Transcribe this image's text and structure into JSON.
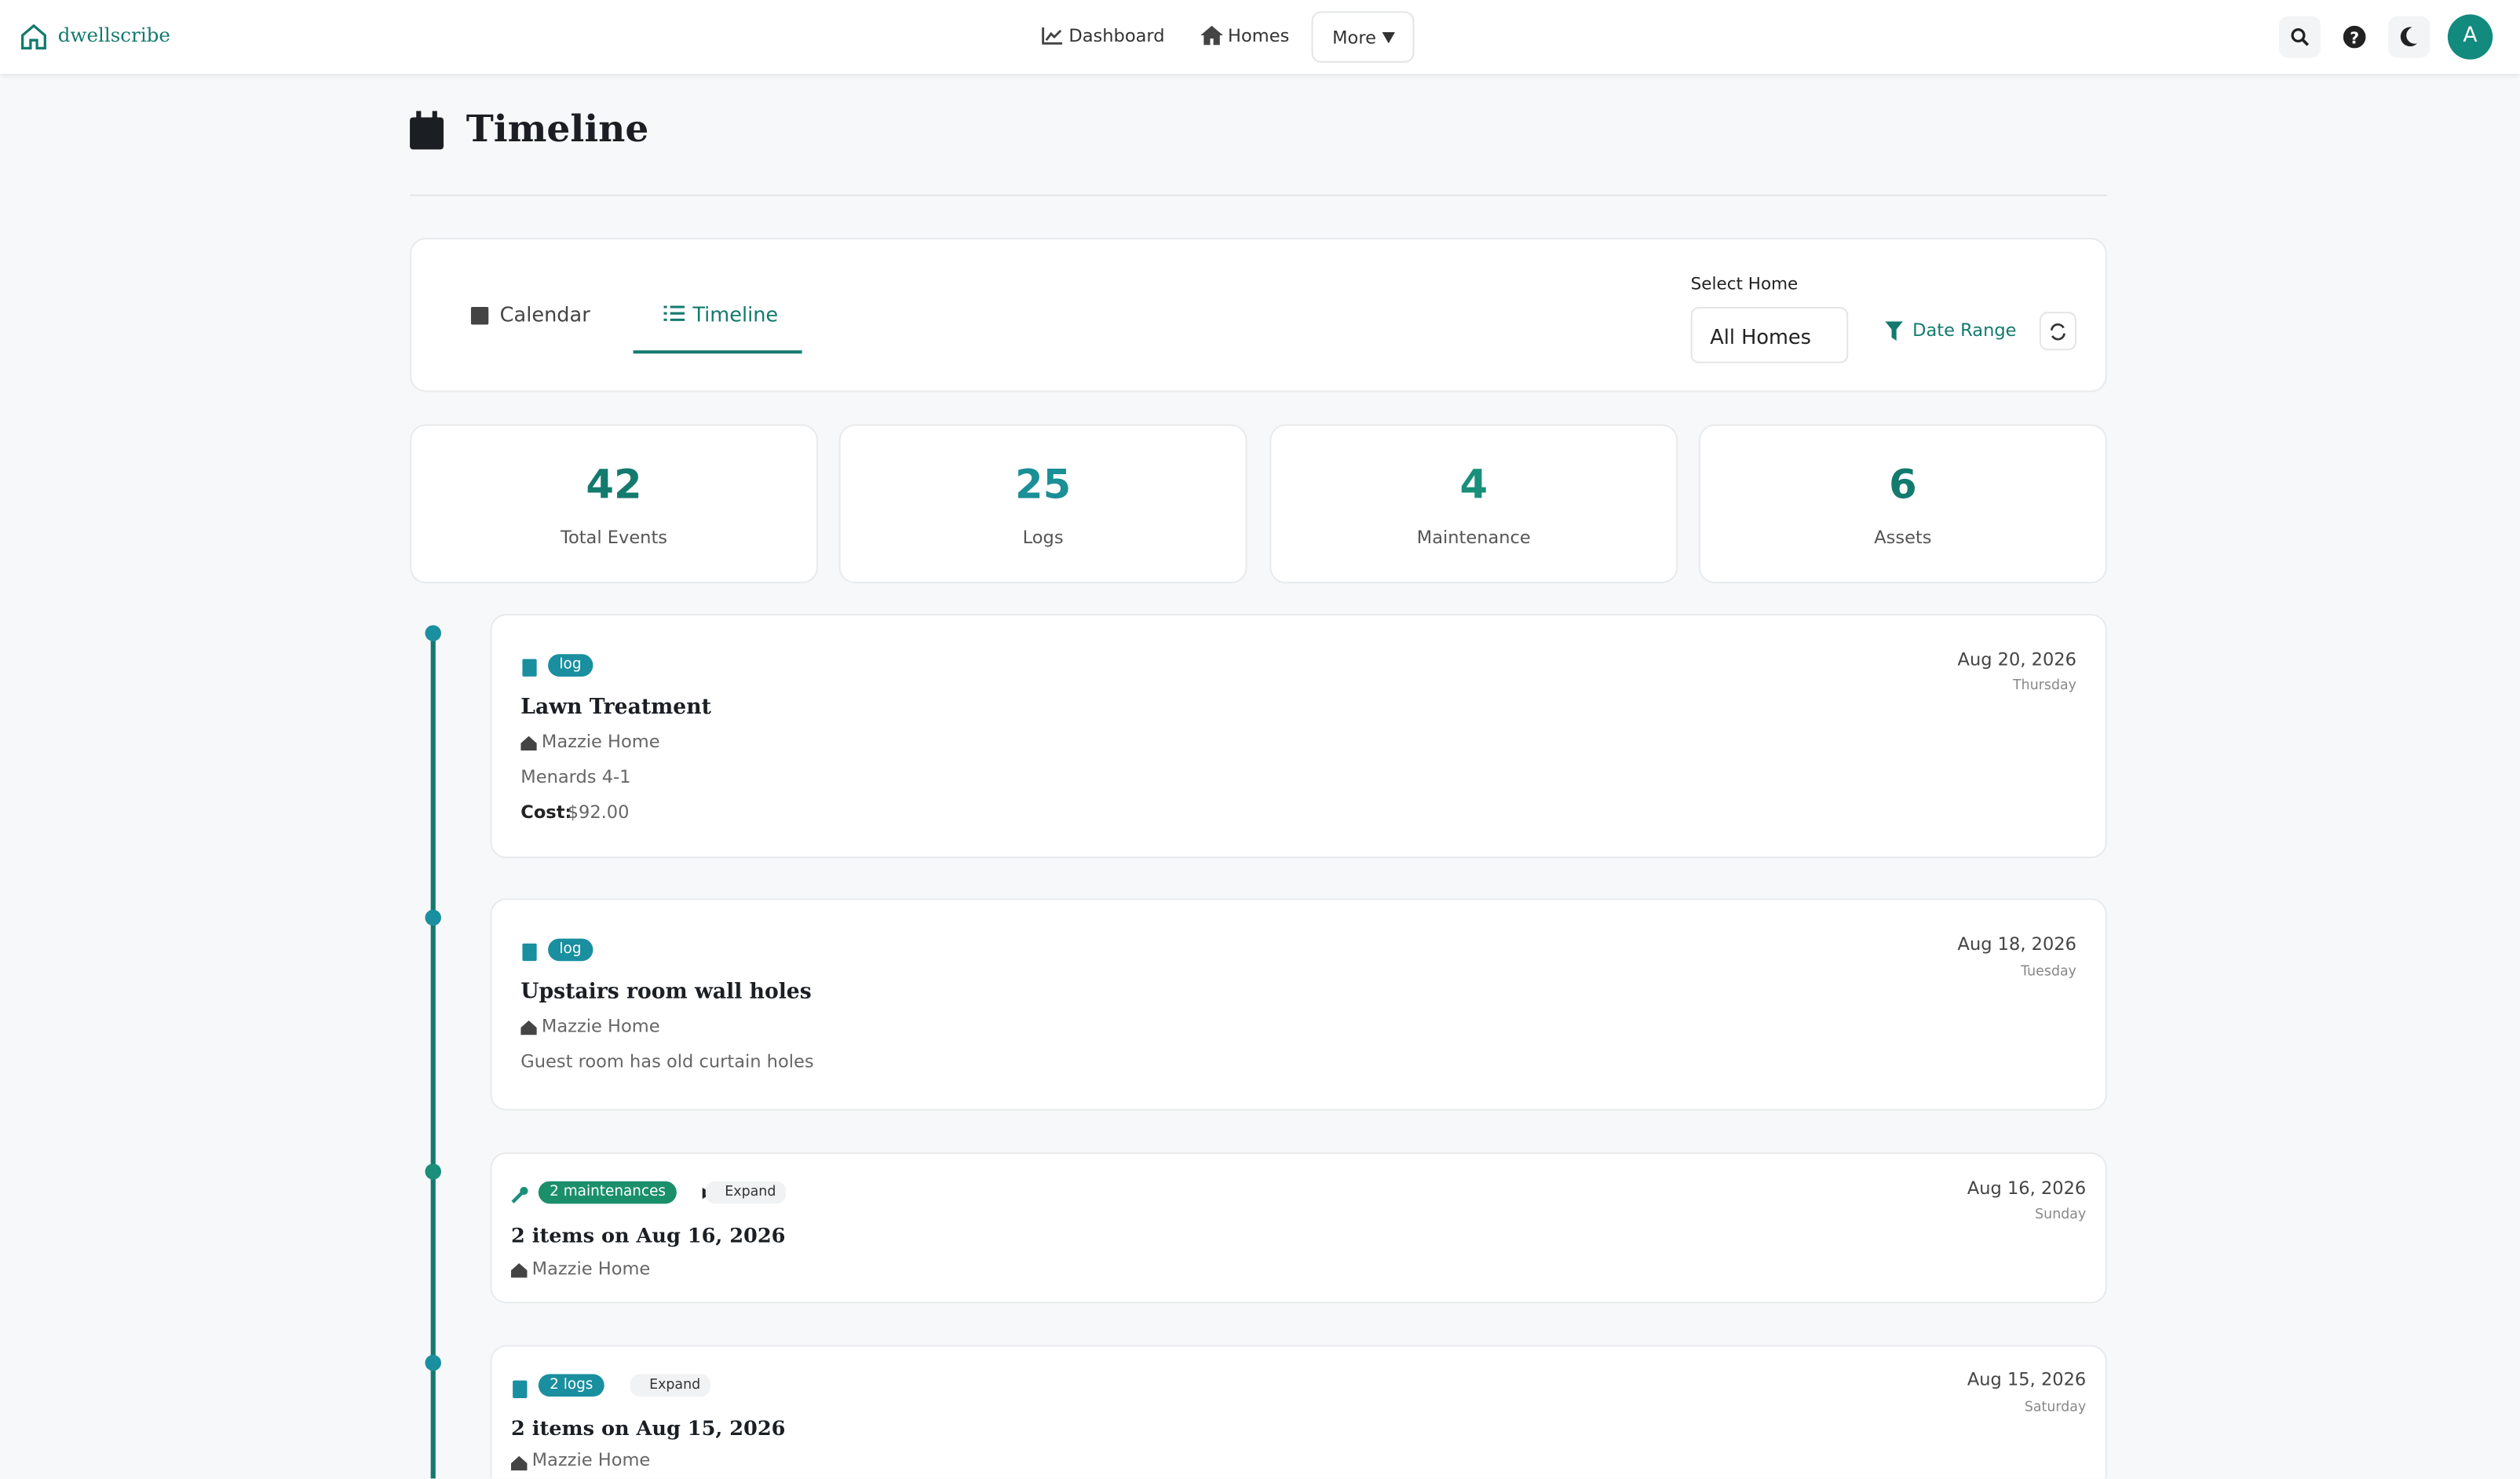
{
  "nav": {
    "brand": "dwellscribe",
    "links": [
      "Dashboard",
      "Homes"
    ],
    "more": "More",
    "avatar": "A"
  },
  "header": {
    "title": "Timeline"
  },
  "tabs": [
    "Calendar",
    "Timeline"
  ],
  "filters": {
    "select_label": "Select Home",
    "select_value": "All Homes",
    "date_range": "Date Range"
  },
  "stats": [
    {
      "value": 42,
      "label": "Total Events"
    },
    {
      "value": 25,
      "label": "Logs"
    },
    {
      "value": 4,
      "label": "Maintenance"
    },
    {
      "value": 6,
      "label": "Assets"
    }
  ],
  "events": [
    {
      "badge": "log",
      "title": "Lawn Treatment",
      "home": "Mazzie Home",
      "description": "Menards 4-1",
      "cost_label": "Cost:",
      "cost": "$92.00",
      "date": "Aug 20, 2026",
      "weekday": "Thursday"
    },
    {
      "badge": "log",
      "title": "Upstairs room wall holes",
      "home": "Mazzie Home",
      "description": "Guest room has old curtain holes",
      "date": "Aug 18, 2026",
      "weekday": "Tuesday"
    },
    {
      "badge": "2 maintenances",
      "expand": "Expand",
      "title": "2 items on Aug 16, 2026",
      "home": "Mazzie Home",
      "date": "Aug 16, 2026",
      "weekday": "Sunday"
    },
    {
      "badge": "2 logs",
      "expand": "Expand",
      "title": "2 items on Aug 15, 2026",
      "home": "Mazzie Home",
      "date": "Aug 15, 2026",
      "weekday": "Saturday"
    }
  ]
}
